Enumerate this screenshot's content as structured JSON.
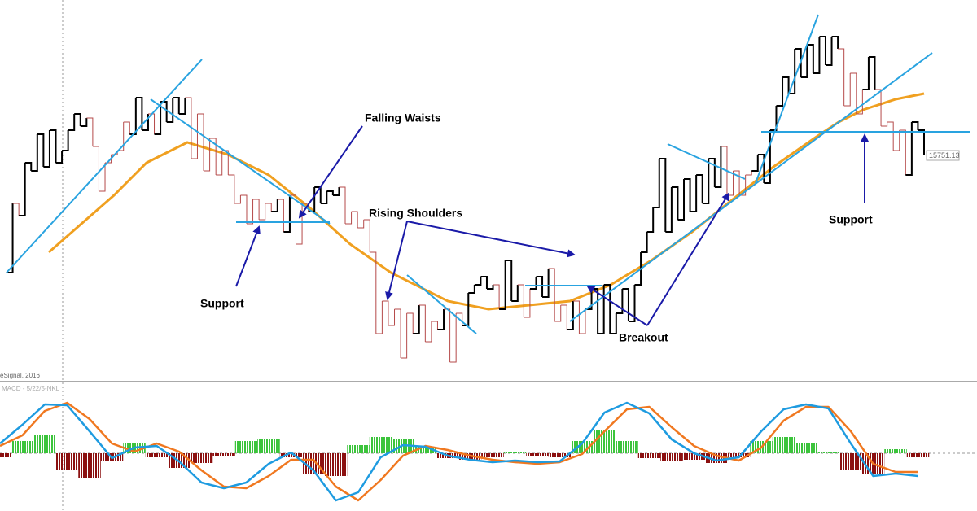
{
  "chart_data": [
    {
      "type": "kagi",
      "source": "eSignal, 2016",
      "price_label": "15751.13",
      "annotations": [
        "Falling Waists",
        "Rising Shoulders",
        "Support",
        "Breakout",
        "Support"
      ],
      "xlim": [
        0,
        1200
      ],
      "ylim": [
        0,
        470
      ],
      "series": [
        {
          "name": "Kagi",
          "color": "#000000",
          "down_color": "#b54a4a",
          "xlim": [
            8,
            1135
          ],
          "values": [
            135,
            220,
            205,
            270,
            260,
            305,
            265,
            310,
            270,
            285,
            310,
            330,
            315,
            325,
            290,
            235,
            270,
            280,
            285,
            320,
            305,
            350,
            310,
            330,
            305,
            345,
            320,
            350,
            330,
            350,
            275,
            330,
            260,
            300,
            255,
            285,
            255,
            220,
            230,
            195,
            225,
            200,
            220,
            210,
            225,
            185,
            230,
            170,
            220,
            210,
            240,
            220,
            235,
            230,
            240,
            195,
            210,
            190,
            200,
            160,
            60,
            100,
            70,
            90,
            30,
            85,
            60,
            95,
            50,
            75,
            65,
            90,
            25,
            85,
            70,
            110,
            120,
            130,
            115,
            120,
            90,
            150,
            100,
            120,
            80,
            115,
            130,
            105,
            140,
            75,
            95,
            65,
            100,
            60,
            90,
            115,
            60,
            120,
            60,
            85,
            115,
            75,
            120,
            160,
            185,
            215,
            275,
            185,
            240,
            200,
            250,
            210,
            255,
            220,
            275,
            240,
            290,
            230,
            260,
            230,
            255,
            260,
            280,
            245,
            310,
            340,
            375,
            355,
            410,
            375,
            415,
            380,
            425,
            390,
            425,
            410,
            340,
            380,
            330,
            360,
            400,
            360,
            315,
            320,
            285,
            310,
            255,
            320,
            310,
            280
          ]
        },
        {
          "name": "Moving Average",
          "color": "#f0a020",
          "x": [
            60,
            100,
            140,
            180,
            230,
            280,
            330,
            380,
            430,
            480,
            550,
            600,
            650,
            700,
            750,
            800,
            850,
            900,
            950,
            1000,
            1030,
            1060,
            1100,
            1135
          ],
          "values": [
            160,
            195,
            230,
            270,
            295,
            280,
            255,
            215,
            170,
            135,
            100,
            90,
            95,
            100,
            120,
            150,
            185,
            225,
            265,
            300,
            320,
            335,
            348,
            355
          ]
        }
      ]
    },
    {
      "type": "macd",
      "title": "MACD - 5/22/5-NKL",
      "xlim": [
        0,
        1200
      ],
      "ylim": [
        -71,
        90
      ],
      "x": [
        0,
        27.5,
        55,
        82.5,
        110,
        137.5,
        165,
        192.5,
        220,
        247.5,
        275,
        302.5,
        330,
        357.5,
        385,
        412.5,
        440,
        467.5,
        495,
        522.5,
        550,
        577.5,
        605,
        632.5,
        660,
        687.5,
        715,
        742.5,
        770,
        797.5,
        825,
        852.5,
        880,
        907.5,
        935,
        962.5,
        990,
        1017.5,
        1045,
        1072.5,
        1100,
        1127.5
      ],
      "series": [
        {
          "name": "MACD",
          "color": "#1e9be0",
          "values": [
            12,
            35,
            60,
            59,
            27,
            -6,
            7,
            9,
            -10,
            -36,
            -43,
            -36,
            -13,
            1,
            -21,
            -58,
            -48,
            -5,
            10,
            8,
            -3,
            -8,
            -11,
            -9,
            -11,
            -10,
            12,
            50,
            62,
            49,
            17,
            0,
            -9,
            -5,
            27,
            54,
            60,
            55,
            12,
            -28,
            -25,
            -28
          ]
        },
        {
          "name": "Signal",
          "color": "#f07820",
          "values": [
            9,
            22,
            52,
            62,
            42,
            12,
            2,
            12,
            2,
            -21,
            -41,
            -43,
            -28,
            -8,
            -8,
            -41,
            -58,
            -33,
            -3,
            9,
            4,
            -3,
            -8,
            -11,
            -13,
            -11,
            -1,
            27,
            54,
            57,
            32,
            9,
            -3,
            -9,
            7,
            40,
            57,
            57,
            27,
            -13,
            -23,
            -23
          ]
        },
        {
          "name": "Histogram",
          "color": "#3cc43c",
          "down_color": "#8b1010",
          "values": [
            -5,
            15,
            22,
            -20,
            -30,
            -10,
            12,
            -5,
            -18,
            -12,
            -3,
            15,
            18,
            -5,
            -25,
            -28,
            10,
            20,
            18,
            8,
            -6,
            -8,
            -5,
            2,
            -3,
            -5,
            15,
            28,
            15,
            -6,
            -10,
            -8,
            -12,
            -5,
            15,
            20,
            12,
            2,
            -20,
            -25,
            5,
            -5
          ]
        }
      ]
    }
  ]
}
